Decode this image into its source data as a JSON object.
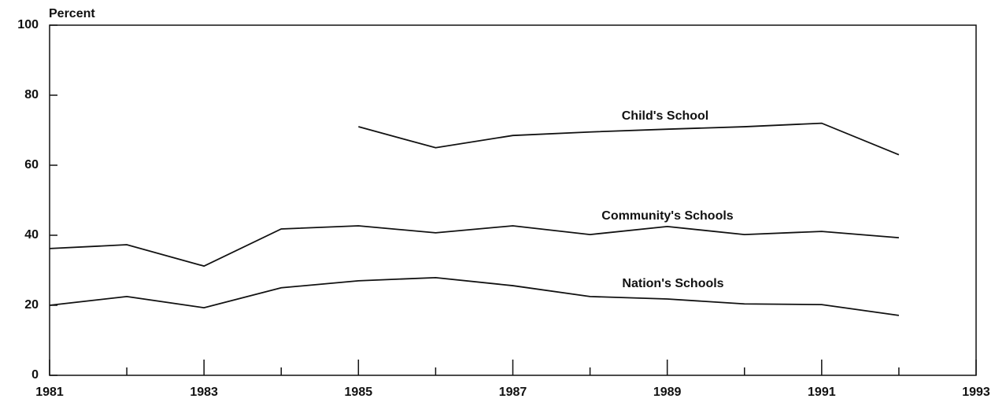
{
  "chart_data": {
    "type": "line",
    "y_label": "Percent",
    "x": [
      1981,
      1982,
      1983,
      1984,
      1985,
      1986,
      1987,
      1988,
      1989,
      1990,
      1991,
      1992
    ],
    "series": [
      {
        "name": "Child's School",
        "color": "#111111",
        "values": [
          null,
          null,
          null,
          null,
          71,
          65,
          68.5,
          69.5,
          70.3,
          71,
          72,
          63
        ]
      },
      {
        "name": "Community's Schools",
        "color": "#111111",
        "values": [
          36.2,
          37.3,
          31.2,
          41.8,
          42.7,
          40.7,
          42.7,
          40.2,
          42.5,
          40.2,
          41.1,
          39.3
        ]
      },
      {
        "name": "Nation's Schools",
        "color": "#111111",
        "values": [
          20,
          22.5,
          19.3,
          25,
          27,
          27.9,
          25.6,
          22.5,
          21.8,
          20.4,
          20.2,
          17.1
        ]
      }
    ],
    "xlim": [
      1981,
      1993
    ],
    "xticks": [
      1981,
      1983,
      1985,
      1987,
      1989,
      1991,
      1993
    ],
    "minor_xticks": [
      1982,
      1984,
      1986,
      1988,
      1990,
      1992
    ],
    "ylim": [
      0,
      100
    ],
    "yticks": [
      0,
      20,
      40,
      60,
      80,
      100
    ]
  }
}
